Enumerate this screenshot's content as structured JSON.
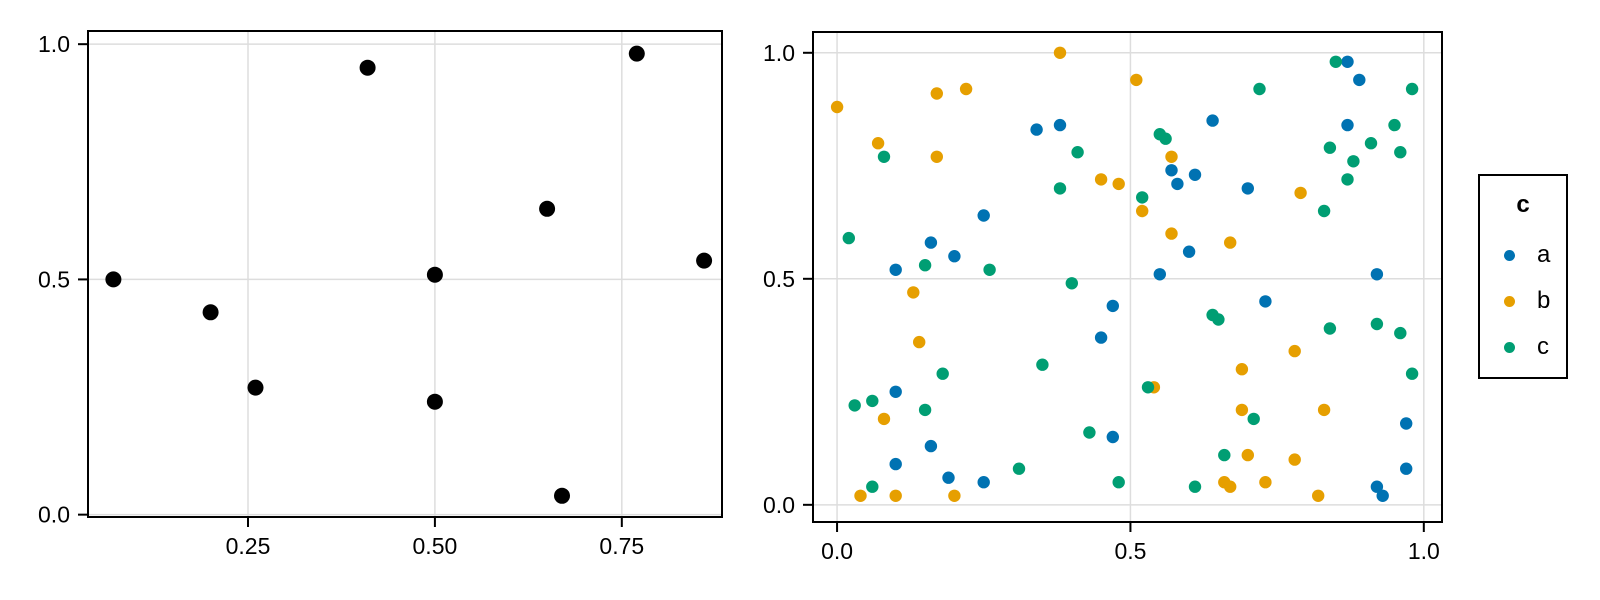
{
  "page": {
    "background": "#ffffff"
  },
  "palette": {
    "black": "#000000",
    "blue": "#0072B2",
    "orange": "#E69F00",
    "green": "#009E73",
    "gridline": "#DDDDDD",
    "frame": "#000000",
    "text": "#000000"
  },
  "legend": {
    "title": "c",
    "items": [
      {
        "label": "a",
        "color": "#0072B2"
      },
      {
        "label": "b",
        "color": "#E69F00"
      },
      {
        "label": "c",
        "color": "#009E73"
      }
    ]
  },
  "chart_data": [
    {
      "id": "left-scatter",
      "type": "scatter",
      "title": "",
      "xlabel": "",
      "ylabel": "",
      "grid": true,
      "xlim": [
        0.036,
        0.884
      ],
      "ylim": [
        -0.005,
        1.028
      ],
      "xticks": {
        "values": [
          0.25,
          0.5,
          0.75
        ],
        "labels": [
          "0.25",
          "0.50",
          "0.75"
        ]
      },
      "yticks": {
        "values": [
          0,
          0.5,
          1
        ],
        "labels": [
          "0.0",
          "0.5",
          "1.0"
        ]
      },
      "series": [
        {
          "name": "points",
          "color": "#000000",
          "marker_radius": 8,
          "points": [
            [
              0.07,
              0.5
            ],
            [
              0.2,
              0.43
            ],
            [
              0.26,
              0.27
            ],
            [
              0.41,
              0.95
            ],
            [
              0.5,
              0.51
            ],
            [
              0.5,
              0.24
            ],
            [
              0.65,
              0.65
            ],
            [
              0.67,
              0.04
            ],
            [
              0.77,
              0.98
            ],
            [
              0.86,
              0.54
            ]
          ]
        }
      ]
    },
    {
      "id": "right-scatter",
      "type": "scatter",
      "title": "",
      "xlabel": "",
      "ylabel": "",
      "grid": true,
      "legend_title": "c",
      "legend_position": "right",
      "xlim": [
        -0.041,
        1.031
      ],
      "ylim": [
        -0.038,
        1.046
      ],
      "xticks": {
        "values": [
          0,
          0.5,
          1
        ],
        "labels": [
          "0.0",
          "0.5",
          "1.0"
        ]
      },
      "yticks": {
        "values": [
          0,
          0.5,
          1
        ],
        "labels": [
          "0.0",
          "0.5",
          "1.0"
        ]
      },
      "series": [
        {
          "name": "a",
          "color": "#0072B2",
          "marker_radius": 6.2,
          "points": [
            [
              0.34,
              0.83
            ],
            [
              0.38,
              0.84
            ],
            [
              0.64,
              0.85
            ],
            [
              0.57,
              0.74
            ],
            [
              0.61,
              0.73
            ],
            [
              0.58,
              0.71
            ],
            [
              0.87,
              0.98
            ],
            [
              0.89,
              0.94
            ],
            [
              0.87,
              0.84
            ],
            [
              0.7,
              0.7
            ],
            [
              0.25,
              0.64
            ],
            [
              0.16,
              0.58
            ],
            [
              0.2,
              0.55
            ],
            [
              0.1,
              0.52
            ],
            [
              0.6,
              0.56
            ],
            [
              0.55,
              0.51
            ],
            [
              0.47,
              0.44
            ],
            [
              0.45,
              0.37
            ],
            [
              0.92,
              0.51
            ],
            [
              0.73,
              0.45
            ],
            [
              0.1,
              0.25
            ],
            [
              0.16,
              0.13
            ],
            [
              0.1,
              0.09
            ],
            [
              0.19,
              0.06
            ],
            [
              0.25,
              0.05
            ],
            [
              0.47,
              0.15
            ],
            [
              0.97,
              0.18
            ],
            [
              0.92,
              0.04
            ],
            [
              0.93,
              0.02
            ],
            [
              0.97,
              0.08
            ]
          ]
        },
        {
          "name": "b",
          "color": "#E69F00",
          "marker_radius": 6.2,
          "points": [
            [
              0.0,
              0.88
            ],
            [
              0.17,
              0.91
            ],
            [
              0.22,
              0.92
            ],
            [
              0.07,
              0.8
            ],
            [
              0.17,
              0.77
            ],
            [
              0.38,
              1.0
            ],
            [
              0.51,
              0.94
            ],
            [
              0.57,
              0.77
            ],
            [
              0.45,
              0.72
            ],
            [
              0.48,
              0.71
            ],
            [
              0.79,
              0.69
            ],
            [
              0.13,
              0.47
            ],
            [
              0.14,
              0.36
            ],
            [
              0.52,
              0.65
            ],
            [
              0.57,
              0.6
            ],
            [
              0.67,
              0.58
            ],
            [
              0.78,
              0.34
            ],
            [
              0.08,
              0.19
            ],
            [
              0.04,
              0.02
            ],
            [
              0.1,
              0.02
            ],
            [
              0.2,
              0.02
            ],
            [
              0.54,
              0.26
            ],
            [
              0.69,
              0.3
            ],
            [
              0.69,
              0.21
            ],
            [
              0.83,
              0.21
            ],
            [
              0.7,
              0.11
            ],
            [
              0.78,
              0.1
            ],
            [
              0.66,
              0.05
            ],
            [
              0.67,
              0.04
            ],
            [
              0.73,
              0.05
            ],
            [
              0.82,
              0.02
            ]
          ]
        },
        {
          "name": "c",
          "color": "#009E73",
          "marker_radius": 6.2,
          "points": [
            [
              0.08,
              0.77
            ],
            [
              0.55,
              0.82
            ],
            [
              0.56,
              0.81
            ],
            [
              0.41,
              0.78
            ],
            [
              0.38,
              0.7
            ],
            [
              0.85,
              0.98
            ],
            [
              0.72,
              0.92
            ],
            [
              0.98,
              0.92
            ],
            [
              0.95,
              0.84
            ],
            [
              0.84,
              0.79
            ],
            [
              0.91,
              0.8
            ],
            [
              0.96,
              0.78
            ],
            [
              0.88,
              0.76
            ],
            [
              0.87,
              0.72
            ],
            [
              0.02,
              0.59
            ],
            [
              0.15,
              0.53
            ],
            [
              0.26,
              0.52
            ],
            [
              0.52,
              0.68
            ],
            [
              0.4,
              0.49
            ],
            [
              0.64,
              0.42
            ],
            [
              0.65,
              0.41
            ],
            [
              0.83,
              0.65
            ],
            [
              0.84,
              0.39
            ],
            [
              0.92,
              0.4
            ],
            [
              0.96,
              0.38
            ],
            [
              0.18,
              0.29
            ],
            [
              0.06,
              0.23
            ],
            [
              0.03,
              0.22
            ],
            [
              0.15,
              0.21
            ],
            [
              0.06,
              0.04
            ],
            [
              0.31,
              0.08
            ],
            [
              0.35,
              0.31
            ],
            [
              0.53,
              0.26
            ],
            [
              0.43,
              0.16
            ],
            [
              0.48,
              0.05
            ],
            [
              0.61,
              0.04
            ],
            [
              0.66,
              0.11
            ],
            [
              0.98,
              0.29
            ],
            [
              0.71,
              0.19
            ]
          ]
        }
      ]
    }
  ]
}
